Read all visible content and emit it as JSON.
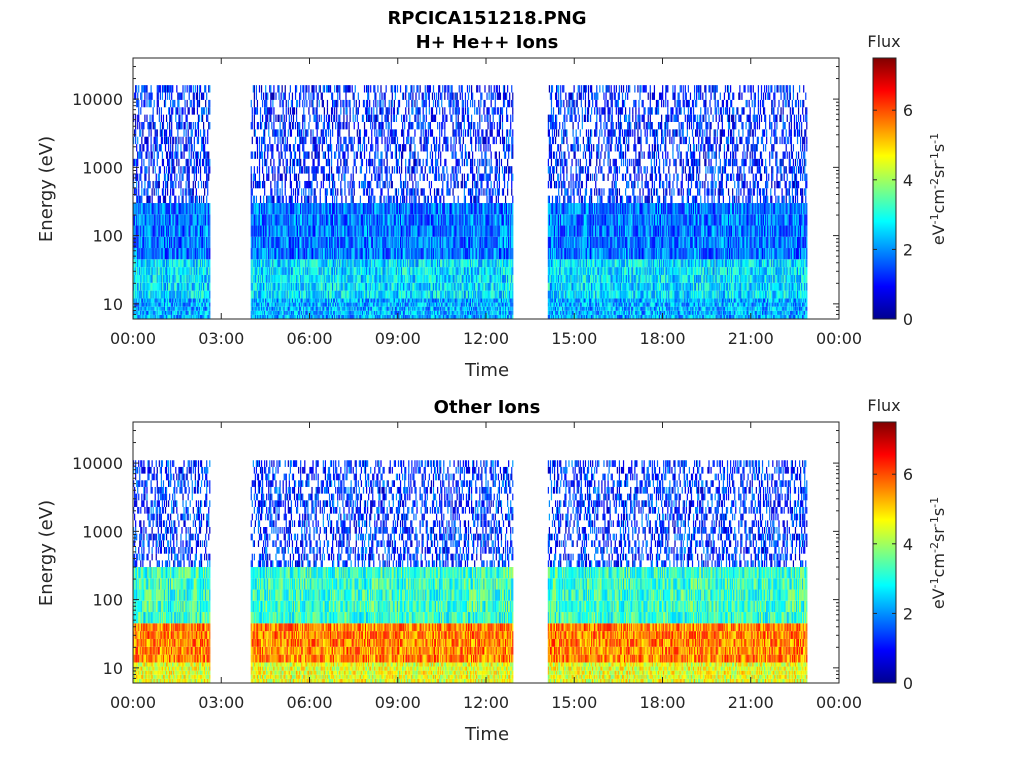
{
  "figure": {
    "title": "RPCICA151218.PNG"
  },
  "chart_data": [
    {
      "type": "heatmap",
      "title": "H+ He++ Ions",
      "xlabel": "Time",
      "ylabel": "Energy (eV)",
      "x_tick_labels": [
        "00:00",
        "03:00",
        "06:00",
        "09:00",
        "12:00",
        "15:00",
        "18:00",
        "21:00",
        "00:00"
      ],
      "x_range_hours": [
        0,
        24
      ],
      "y_scale": "log",
      "y_range": [
        6,
        40000
      ],
      "y_ticks": [
        10,
        100,
        1000,
        10000
      ],
      "y_tick_labels": [
        "10",
        "100",
        "1000",
        "10000"
      ],
      "data_segments_hours": [
        [
          0,
          2.6
        ],
        [
          4.0,
          12.9
        ],
        [
          14.1,
          22.9
        ]
      ],
      "energy_bands": [
        {
          "e_min": 6,
          "e_max": 12,
          "flux": 2.2
        },
        {
          "e_min": 12,
          "e_max": 45,
          "flux": 2.6
        },
        {
          "e_min": 45,
          "e_max": 300,
          "flux": 1.8
        },
        {
          "e_min": 300,
          "e_max": 16000,
          "flux": 1.2
        }
      ],
      "colorbar": {
        "label": "Flux",
        "units": "eV-1cm-2sr-1s-1",
        "range": [
          0,
          7.5
        ],
        "ticks": [
          0,
          2,
          4,
          6
        ],
        "tick_labels": [
          "0",
          "2",
          "4",
          "6"
        ],
        "colormap": "jet"
      }
    },
    {
      "type": "heatmap",
      "title": "Other Ions",
      "xlabel": "Time",
      "ylabel": "Energy (eV)",
      "x_tick_labels": [
        "00:00",
        "03:00",
        "06:00",
        "09:00",
        "12:00",
        "15:00",
        "18:00",
        "21:00",
        "00:00"
      ],
      "x_range_hours": [
        0,
        24
      ],
      "y_scale": "log",
      "y_range": [
        6,
        40000
      ],
      "y_ticks": [
        10,
        100,
        1000,
        10000
      ],
      "y_tick_labels": [
        "10",
        "100",
        "1000",
        "10000"
      ],
      "data_segments_hours": [
        [
          0,
          2.6
        ],
        [
          4.0,
          12.9
        ],
        [
          14.1,
          22.9
        ]
      ],
      "energy_bands": [
        {
          "e_min": 6,
          "e_max": 12,
          "flux": 4.5
        },
        {
          "e_min": 12,
          "e_max": 45,
          "flux": 5.6
        },
        {
          "e_min": 45,
          "e_max": 300,
          "flux": 3.2
        },
        {
          "e_min": 300,
          "e_max": 11000,
          "flux": 1.3
        }
      ],
      "colorbar": {
        "label": "Flux",
        "units": "eV-1cm-2sr-1s-1",
        "range": [
          0,
          7.5
        ],
        "ticks": [
          0,
          2,
          4,
          6
        ],
        "tick_labels": [
          "0",
          "2",
          "4",
          "6"
        ],
        "colormap": "jet"
      }
    }
  ]
}
